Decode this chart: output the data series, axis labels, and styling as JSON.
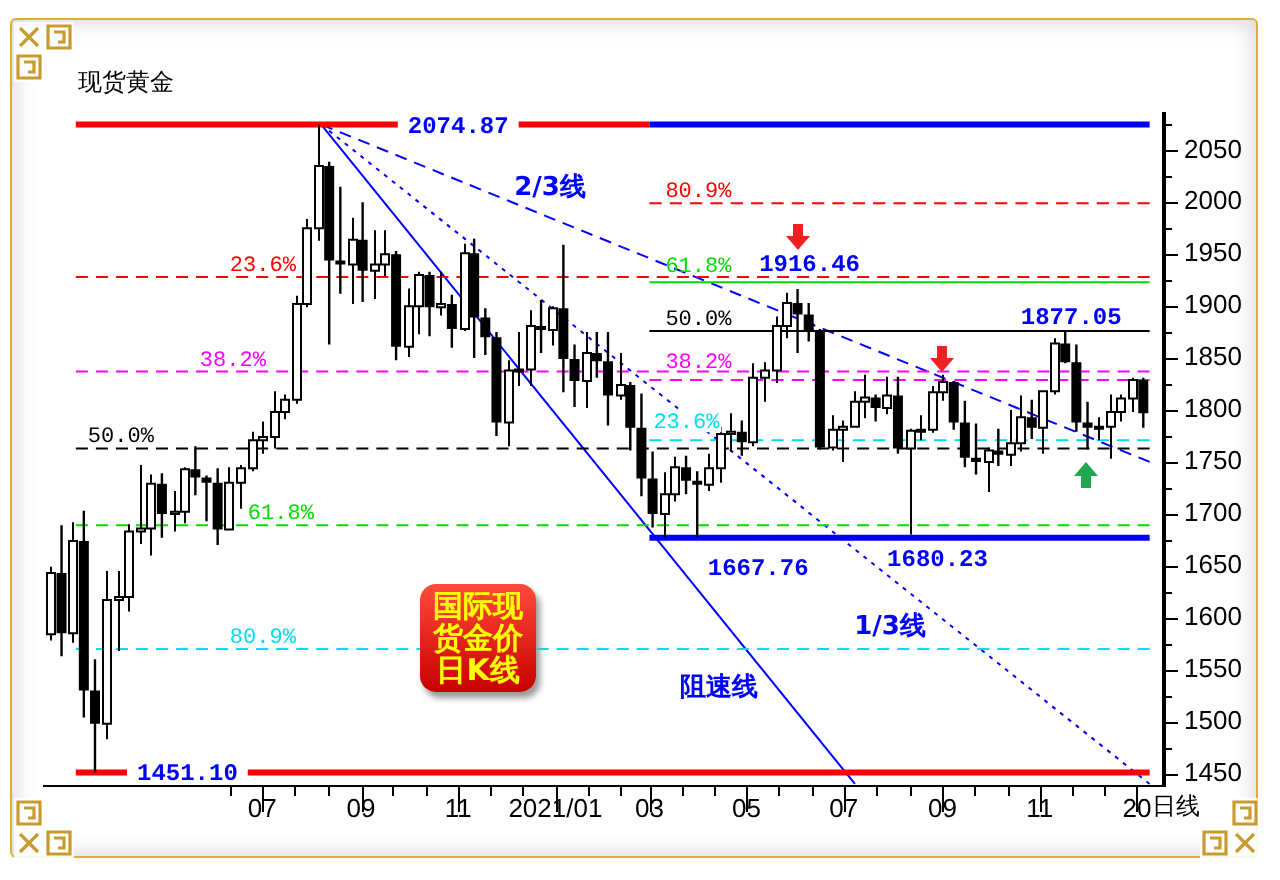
{
  "chart_data": {
    "type": "candlestick",
    "title": "现货黄金",
    "xlabel": "日线",
    "color": "#000000",
    "x": [
      "2020-02-19",
      "2020-02-26",
      "2020-03-04",
      "2020-03-11",
      "2020-03-18",
      "2020-03-25",
      "2020-04-01",
      "2020-04-08",
      "2020-04-15",
      "2020-04-22",
      "2020-04-29",
      "2020-05-06",
      "2020-05-13",
      "2020-05-20",
      "2020-05-27",
      "2020-06-03",
      "2020-06-10",
      "2020-06-17",
      "2020-06-24",
      "2020-07-01",
      "2020-07-08",
      "2020-07-15",
      "2020-07-22",
      "2020-07-29",
      "2020-08-05",
      "2020-08-12",
      "2020-08-19",
      "2020-08-26",
      "2020-09-02",
      "2020-09-09",
      "2020-09-16",
      "2020-09-23",
      "2020-09-30",
      "2020-10-07",
      "2020-10-14",
      "2020-10-21",
      "2020-10-28",
      "2020-11-04",
      "2020-11-11",
      "2020-11-18",
      "2020-11-25",
      "2020-12-02",
      "2020-12-09",
      "2020-12-16",
      "2020-12-23",
      "2020-12-30",
      "2021-01-06",
      "2021-01-13",
      "2021-01-20",
      "2021-01-27",
      "2021-02-03",
      "2021-02-10",
      "2021-02-17",
      "2021-02-24",
      "2021-03-03",
      "2021-03-10",
      "2021-03-17",
      "2021-03-24",
      "2021-03-31",
      "2021-04-07",
      "2021-04-14",
      "2021-04-21",
      "2021-04-28",
      "2021-05-05",
      "2021-05-12",
      "2021-05-19",
      "2021-05-26",
      "2021-06-02",
      "2021-06-09",
      "2021-06-16",
      "2021-06-23",
      "2021-06-30",
      "2021-07-07",
      "2021-07-14",
      "2021-07-21",
      "2021-07-28",
      "2021-08-04",
      "2021-08-11",
      "2021-08-18",
      "2021-08-25",
      "2021-09-01",
      "2021-09-08",
      "2021-09-15",
      "2021-09-22",
      "2021-09-29",
      "2021-10-06",
      "2021-10-13",
      "2021-10-20",
      "2021-10-27",
      "2021-11-03",
      "2021-11-10",
      "2021-11-17",
      "2021-11-24",
      "2021-12-01",
      "2021-12-08",
      "2021-12-15",
      "2021-12-22",
      "2021-12-29",
      "2022-01-05"
    ],
    "ohlc": [
      [
        1584,
        1649,
        1578,
        1643
      ],
      [
        1643,
        1689,
        1563,
        1585
      ],
      [
        1585,
        1692,
        1576,
        1674
      ],
      [
        1674,
        1703,
        1504,
        1530
      ],
      [
        1530,
        1560,
        1451.1,
        1498
      ],
      [
        1498,
        1645,
        1483,
        1617
      ],
      [
        1617,
        1645,
        1568,
        1620
      ],
      [
        1620,
        1690,
        1606,
        1683
      ],
      [
        1683,
        1747,
        1671,
        1686
      ],
      [
        1686,
        1738,
        1660,
        1729
      ],
      [
        1729,
        1739,
        1677,
        1700
      ],
      [
        1700,
        1722,
        1683,
        1702
      ],
      [
        1702,
        1745,
        1691,
        1743
      ],
      [
        1743,
        1765,
        1718,
        1735
      ],
      [
        1735,
        1737,
        1693,
        1730
      ],
      [
        1730,
        1744,
        1670,
        1685
      ],
      [
        1685,
        1745,
        1684,
        1730
      ],
      [
        1730,
        1747,
        1705,
        1744
      ],
      [
        1744,
        1779,
        1741,
        1771
      ],
      [
        1771,
        1789,
        1758,
        1774
      ],
      [
        1774,
        1818,
        1763,
        1798
      ],
      [
        1798,
        1815,
        1791,
        1810
      ],
      [
        1810,
        1910,
        1806,
        1902
      ],
      [
        1902,
        1984,
        1899,
        1975
      ],
      [
        1975,
        2074.87,
        1963,
        2035
      ],
      [
        2035,
        2039,
        1863,
        1944
      ],
      [
        1944,
        2015,
        1912,
        1940
      ],
      [
        1940,
        1985,
        1902,
        1964
      ],
      [
        1964,
        2000,
        1904,
        1934
      ],
      [
        1934,
        1973,
        1907,
        1940
      ],
      [
        1940,
        1973,
        1929,
        1950
      ],
      [
        1950,
        1953,
        1848,
        1861
      ],
      [
        1861,
        1917,
        1851,
        1900
      ],
      [
        1900,
        1933,
        1873,
        1930
      ],
      [
        1930,
        1933,
        1871,
        1899
      ],
      [
        1899,
        1933,
        1891,
        1902
      ],
      [
        1902,
        1911,
        1860,
        1878
      ],
      [
        1878,
        1960,
        1876,
        1951
      ],
      [
        1951,
        1965,
        1850,
        1889
      ],
      [
        1889,
        1898,
        1853,
        1870
      ],
      [
        1870,
        1875,
        1775,
        1788
      ],
      [
        1788,
        1848,
        1765,
        1838
      ],
      [
        1838,
        1875,
        1823,
        1839
      ],
      [
        1839,
        1896,
        1823,
        1881
      ],
      [
        1881,
        1906,
        1855,
        1877
      ],
      [
        1877,
        1900,
        1862,
        1898
      ],
      [
        1898,
        1959,
        1817,
        1849
      ],
      [
        1849,
        1863,
        1803,
        1828
      ],
      [
        1828,
        1875,
        1802,
        1855
      ],
      [
        1855,
        1875,
        1831,
        1847
      ],
      [
        1847,
        1875,
        1785,
        1814
      ],
      [
        1814,
        1855,
        1810,
        1824
      ],
      [
        1824,
        1827,
        1761,
        1783
      ],
      [
        1783,
        1816,
        1717,
        1734
      ],
      [
        1734,
        1760,
        1687,
        1700
      ],
      [
        1700,
        1740,
        1677,
        1719
      ],
      [
        1719,
        1755,
        1712,
        1745
      ],
      [
        1745,
        1756,
        1719,
        1732
      ],
      [
        1732,
        1741,
        1678,
        1728
      ],
      [
        1728,
        1758,
        1722,
        1744
      ],
      [
        1744,
        1784,
        1730,
        1777
      ],
      [
        1777,
        1797,
        1760,
        1779
      ],
      [
        1779,
        1790,
        1756,
        1769
      ],
      [
        1769,
        1845,
        1765,
        1831
      ],
      [
        1831,
        1846,
        1808,
        1838
      ],
      [
        1838,
        1890,
        1826,
        1881
      ],
      [
        1881,
        1913,
        1869,
        1903
      ],
      [
        1903,
        1916.46,
        1855,
        1892
      ],
      [
        1892,
        1903,
        1866,
        1877
      ],
      [
        1877,
        1878,
        1762,
        1764
      ],
      [
        1764,
        1795,
        1761,
        1781
      ],
      [
        1781,
        1790,
        1750,
        1784
      ],
      [
        1784,
        1818,
        1783,
        1808
      ],
      [
        1808,
        1834,
        1792,
        1812
      ],
      [
        1812,
        1815,
        1789,
        1802
      ],
      [
        1802,
        1832,
        1796,
        1814
      ],
      [
        1814,
        1832,
        1758,
        1763
      ],
      [
        1763,
        1782,
        1680.23,
        1780
      ],
      [
        1780,
        1795,
        1771,
        1781
      ],
      [
        1781,
        1823,
        1778,
        1817
      ],
      [
        1817,
        1834,
        1809,
        1827
      ],
      [
        1827,
        1828,
        1781,
        1788
      ],
      [
        1788,
        1809,
        1745,
        1754
      ],
      [
        1754,
        1787,
        1738,
        1750
      ],
      [
        1750,
        1764,
        1721,
        1761
      ],
      [
        1761,
        1782,
        1746,
        1757
      ],
      [
        1757,
        1800,
        1746,
        1768
      ],
      [
        1768,
        1814,
        1760,
        1793
      ],
      [
        1793,
        1810,
        1772,
        1783
      ],
      [
        1783,
        1818,
        1758,
        1818
      ],
      [
        1818,
        1869,
        1815,
        1864
      ],
      [
        1864,
        1877.05,
        1845,
        1846
      ],
      [
        1846,
        1863,
        1779,
        1788
      ],
      [
        1788,
        1808,
        1762,
        1783
      ],
      [
        1783,
        1793,
        1771,
        1784
      ],
      [
        1784,
        1815,
        1753,
        1798
      ],
      [
        1798,
        1815,
        1789,
        1811
      ],
      [
        1811,
        1831,
        1798,
        1829
      ],
      [
        1829,
        1831,
        1783,
        1797
      ]
    ],
    "xlim": [
      "2020-02-15",
      "2022-01-18"
    ],
    "xticks": [
      {
        "value": "2020-06-11",
        "label": null
      },
      {
        "value": "2020-07-01",
        "label": "07"
      },
      {
        "value": "2020-07-21",
        "label": null
      },
      {
        "value": "2020-08-11",
        "label": null
      },
      {
        "value": "2020-09-01",
        "label": "09"
      },
      {
        "value": "2020-09-21",
        "label": null
      },
      {
        "value": "2020-10-12",
        "label": null
      },
      {
        "value": "2020-11-01",
        "label": "11"
      },
      {
        "value": "2020-11-21",
        "label": null
      },
      {
        "value": "2020-12-11",
        "label": null
      },
      {
        "value": "2021-01-01",
        "label": "2021/01"
      },
      {
        "value": "2021-01-21",
        "label": null
      },
      {
        "value": "2021-02-10",
        "label": null
      },
      {
        "value": "2021-03-01",
        "label": "03"
      },
      {
        "value": "2021-03-21",
        "label": null
      },
      {
        "value": "2021-04-11",
        "label": null
      },
      {
        "value": "2021-05-01",
        "label": "05"
      },
      {
        "value": "2021-05-21",
        "label": null
      },
      {
        "value": "2021-06-11",
        "label": null
      },
      {
        "value": "2021-07-01",
        "label": "07"
      },
      {
        "value": "2021-07-21",
        "label": null
      },
      {
        "value": "2021-08-11",
        "label": null
      },
      {
        "value": "2021-09-01",
        "label": "09"
      },
      {
        "value": "2021-09-21",
        "label": null
      },
      {
        "value": "2021-10-12",
        "label": null
      },
      {
        "value": "2021-11-01",
        "label": "11"
      },
      {
        "value": "2021-11-21",
        "label": null
      },
      {
        "value": "2021-12-11",
        "label": null
      },
      {
        "value": "2022-01-01",
        "label": "20"
      }
    ],
    "ylim": [
      1438,
      2085
    ],
    "yticks": [
      1450,
      {
        "value": 1475,
        "label": null
      },
      1500,
      {
        "value": 1525,
        "label": null
      },
      1550,
      {
        "value": 1575,
        "label": null
      },
      1600,
      {
        "value": 1625,
        "label": null
      },
      1650,
      {
        "value": 1675,
        "label": null
      },
      1700,
      {
        "value": 1725,
        "label": null
      },
      1750,
      {
        "value": 1775,
        "label": null
      },
      1800,
      {
        "value": 1825,
        "label": null
      },
      1850,
      {
        "value": 1875,
        "label": null
      },
      1900,
      {
        "value": 1925,
        "label": null
      },
      1950,
      {
        "value": 1975,
        "label": null
      },
      2000,
      {
        "value": 2025,
        "label": null
      },
      2050,
      {
        "value": 2075,
        "label": null
      }
    ],
    "series": [
      {
        "type": "line",
        "color": "#ff0000",
        "line_style": "solid",
        "x": [
          "2020-03-06",
          "2021-03-01"
        ],
        "values": [
          2074.87,
          2074.87
        ]
      },
      {
        "type": "line",
        "color": "#ff0000",
        "line_style": "solid",
        "x": [
          "2020-03-06",
          "2022-01-09"
        ],
        "values": [
          1451.1,
          1451.1
        ]
      },
      {
        "type": "line",
        "name": "23.6%",
        "color": "#ff0000",
        "line_style": "dashed",
        "x": [
          "2020-03-06",
          "2022-01-09"
        ],
        "values": [
          1928,
          1928
        ]
      },
      {
        "type": "line",
        "name": "38.2%",
        "color": "#ff00ff",
        "line_style": "dashed",
        "x": [
          "2020-03-06",
          "2022-01-09"
        ],
        "values": [
          1837,
          1837
        ]
      },
      {
        "type": "line",
        "name": "50.0%",
        "color": "#000000",
        "line_style": "dashed",
        "x": [
          "2020-03-06",
          "2022-01-09"
        ],
        "values": [
          1763,
          1763
        ]
      },
      {
        "type": "line",
        "name": "61.8%",
        "color": "#00dd00",
        "line_style": "dashed",
        "x": [
          "2020-03-06",
          "2022-01-09"
        ],
        "values": [
          1689,
          1689
        ]
      },
      {
        "type": "line",
        "name": "80.9%",
        "color": "#00dcf0",
        "line_style": "dashed",
        "x": [
          "2020-03-06",
          "2022-01-09"
        ],
        "values": [
          1570,
          1570
        ]
      },
      {
        "type": "line",
        "color": "#0000ff",
        "line_style": "solid",
        "x": [
          "2021-03-01",
          "2022-01-09"
        ],
        "values": [
          2074.87,
          2074.87
        ]
      },
      {
        "type": "line",
        "color": "#0000ff",
        "line_style": "solid",
        "x": [
          "2021-03-01",
          "2022-01-09"
        ],
        "values": [
          1677,
          1677
        ]
      },
      {
        "type": "line",
        "name": "80.9%",
        "color": "#ff0000",
        "line_style": "dashed",
        "x": [
          "2021-03-01",
          "2022-01-09"
        ],
        "values": [
          1999,
          1999
        ]
      },
      {
        "type": "line",
        "name": "61.8%",
        "color": "#00dd00",
        "line_style": "solid",
        "x": [
          "2021-03-01",
          "2022-01-09"
        ],
        "values": [
          1923,
          1923
        ]
      },
      {
        "type": "line",
        "name": "50.0%",
        "color": "#000000",
        "line_style": "solid",
        "x": [
          "2021-03-01",
          "2022-01-09"
        ],
        "values": [
          1876,
          1876
        ]
      },
      {
        "type": "line",
        "name": "38.2%",
        "color": "#ff00ff",
        "line_style": "dashed",
        "x": [
          "2021-03-01",
          "2022-01-09"
        ],
        "values": [
          1829,
          1829
        ]
      },
      {
        "type": "line",
        "name": "23.6%",
        "color": "#00dcf0",
        "line_style": "dashed",
        "x": [
          "2021-03-01",
          "2022-01-09"
        ],
        "values": [
          1771,
          1771
        ]
      },
      {
        "type": "line",
        "name": "阻速线",
        "color": "#0000ff",
        "line_style": "solid",
        "x": [
          "2020-08-07",
          "2021-07-08"
        ],
        "values": [
          2074.87,
          1440
        ]
      },
      {
        "type": "line",
        "name": "2/3线",
        "color": "#0000ff",
        "line_style": "dashed",
        "x": [
          "2020-08-07",
          "2022-01-09"
        ],
        "values": [
          2074.87,
          1750
        ]
      },
      {
        "type": "line",
        "name": "1/3线",
        "color": "#0000ff",
        "line_style": "dotted",
        "x": [
          "2020-08-07",
          "2022-01-09"
        ],
        "values": [
          2074.87,
          1440
        ]
      }
    ],
    "annotations": [
      {
        "text": "2074.87",
        "x": "2020-11-01",
        "y": 2074.87
      },
      {
        "text": "1451.10",
        "x": "2020-05-15",
        "y": 1451.1
      },
      {
        "text": "1667.76",
        "x": "2021-03-10",
        "y": 1667.76
      },
      {
        "text": "1680.23",
        "x": "2021-08-11",
        "y": 1680.23
      },
      {
        "text": "1916.46",
        "x": "2021-06-02",
        "y": 1916.46
      },
      {
        "text": "1877.05",
        "x": "2021-11-17",
        "y": 1877.05
      },
      "国际现货金价日K线"
    ]
  }
}
